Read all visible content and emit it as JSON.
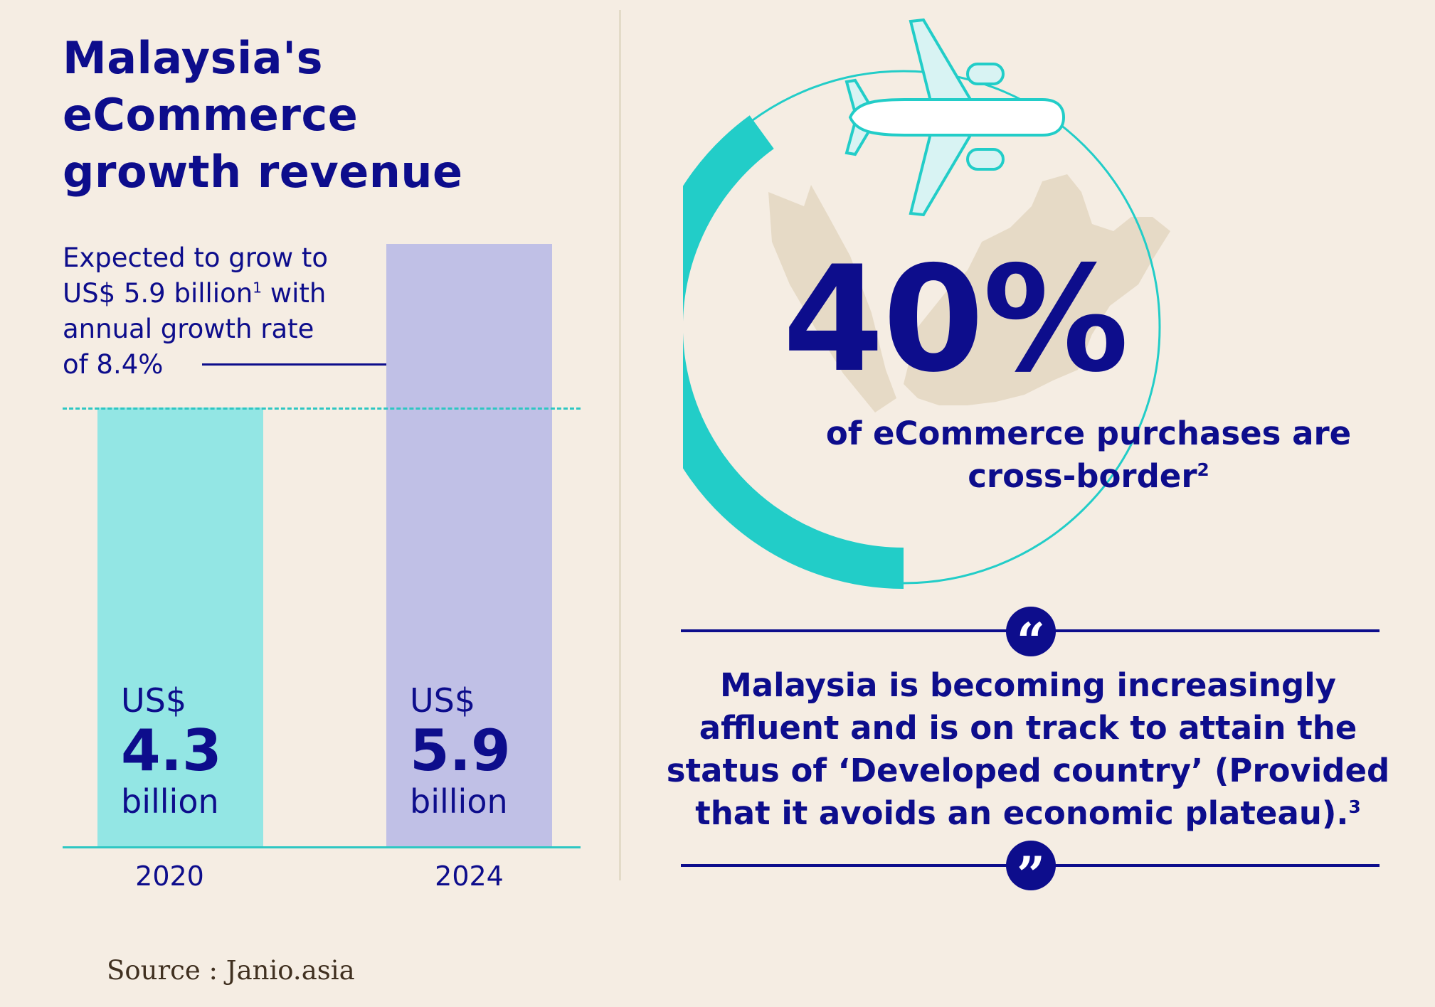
{
  "title": {
    "line1": "Malaysia's",
    "line2": "eCommerce",
    "line3": "growth revenue"
  },
  "subtitle": {
    "line1": "Expected to grow to",
    "line2_pre": "US$ 5.9 billion",
    "line2_fn": "1",
    "line2_post": " with",
    "line3": "annual growth rate",
    "line4": "of 8.4%"
  },
  "chart_data": {
    "type": "bar",
    "title": "Malaysia's eCommerce growth revenue",
    "categories": [
      "2020",
      "2024"
    ],
    "values": [
      4.3,
      5.9
    ],
    "unit": "US$ billion",
    "ylim": [
      0,
      5.9
    ],
    "colors": [
      "#93e6e4",
      "#c0c0e6"
    ],
    "labels": [
      {
        "currency": "US$",
        "value": "4.3",
        "unit": "billion"
      },
      {
        "currency": "US$",
        "value": "5.9",
        "unit": "billion"
      }
    ],
    "xlabel": "",
    "ylabel": ""
  },
  "stat": {
    "value": "40%",
    "text_line1": "of eCommerce purchases are",
    "text_line2": "cross-border",
    "footnote": "2",
    "fraction": 0.4
  },
  "quote": {
    "line1": "Malaysia is becoming increasingly",
    "line2": "affluent and is on track to attain the",
    "line3": "status of ‘Developed country’ (Provided",
    "line4": "that it avoids an economic plateau).",
    "footnote": "3",
    "open_mark": "“",
    "close_mark": "”"
  },
  "source": "Source : Janio.asia",
  "colors": {
    "background": "#f5ede3",
    "navy": "#0d0d8c",
    "teal": "#22cdc8",
    "light_teal": "#93e6e4",
    "lavender": "#c0c0e6",
    "map": "#e6dac6"
  }
}
